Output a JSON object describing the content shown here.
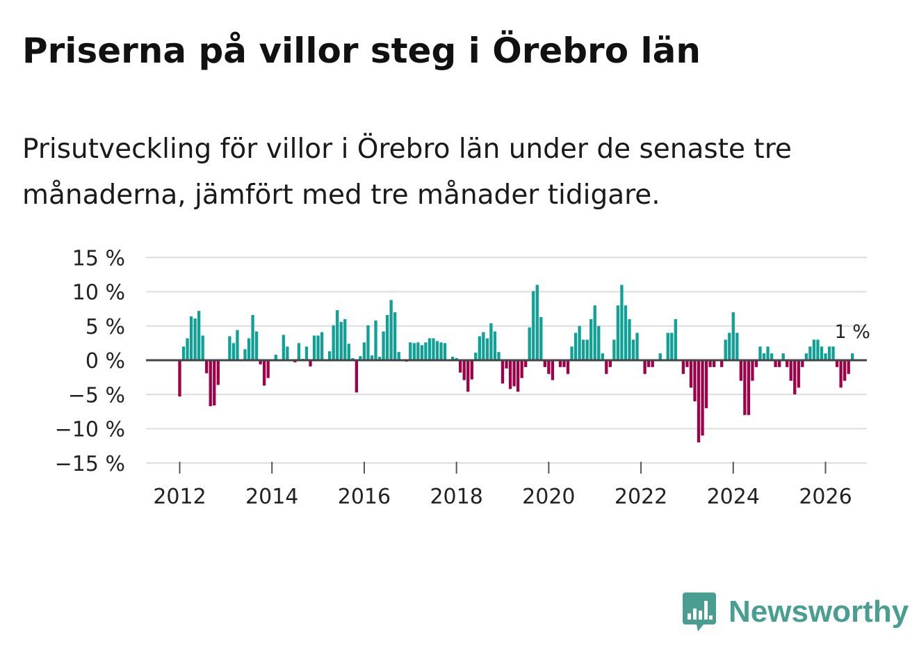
{
  "title": "Priserna på villor steg i Örebro län",
  "subtitle": "Prisutveckling för villor i Örebro län under de senaste tre månaderna, jämfört med tre månader tidigare.",
  "brand": {
    "name": "Newsworthy",
    "icon": "bar-chart-speech-bubble-icon",
    "color": "#4a9e91"
  },
  "chart_data": {
    "type": "bar",
    "title": "Priserna på villor steg i Örebro län",
    "xlabel": "",
    "ylabel": "",
    "ylim": [
      -15,
      15
    ],
    "yticks": [
      15,
      10,
      5,
      0,
      -5,
      -10,
      -15
    ],
    "ytick_labels": [
      "15 %",
      "10 %",
      "5 %",
      "0 %",
      "−5 %",
      "−10 %",
      "−15 %"
    ],
    "xticks": [
      2012,
      2014,
      2016,
      2018,
      2020,
      2022,
      2024,
      2026
    ],
    "xtick_labels": [
      "2012",
      "2014",
      "2016",
      "2018",
      "2020",
      "2022",
      "2024",
      "2026"
    ],
    "x_start": 2012.0,
    "x_step": 0.0833333,
    "positive_color": "#0fa196",
    "negative_color": "#a00047",
    "last_value_label": "1 %",
    "grid": true,
    "values": [
      -5.3,
      2.0,
      3.2,
      6.4,
      6.1,
      7.2,
      3.6,
      -1.9,
      -6.7,
      -6.6,
      -3.6,
      0,
      0,
      3.5,
      2.5,
      4.4,
      0,
      1.6,
      3.2,
      6.6,
      4.2,
      -0.6,
      -3.7,
      -2.6,
      0,
      0.8,
      0,
      3.7,
      2.0,
      0,
      -0.3,
      2.5,
      0.2,
      2.0,
      -0.9,
      3.6,
      3.6,
      4.1,
      0,
      1.3,
      5.1,
      7.3,
      5.6,
      6.0,
      2.4,
      0.3,
      -4.7,
      0.6,
      2.6,
      5.1,
      0.7,
      5.8,
      0.5,
      4.2,
      6.6,
      8.8,
      7.0,
      1.2,
      0,
      -0.2,
      2.6,
      2.5,
      2.6,
      2.2,
      2.6,
      3.2,
      3.2,
      2.8,
      2.6,
      2.5,
      0,
      0.5,
      0.3,
      -1.8,
      -2.9,
      -4.6,
      -2.8,
      1.1,
      3.5,
      4.1,
      3.2,
      5.4,
      4.2,
      1.2,
      -3.4,
      -1.2,
      -4.2,
      -3.8,
      -4.6,
      -2.6,
      -1.0,
      4.8,
      10.1,
      11.0,
      6.3,
      -1.0,
      -2.0,
      -2.9,
      0,
      -1.0,
      -1.0,
      -2.0,
      2.0,
      4.0,
      5.0,
      3.0,
      3.0,
      6.0,
      8.0,
      5.0,
      1.0,
      -2.0,
      -1.0,
      3.0,
      8.0,
      11.0,
      8.0,
      6.0,
      3.0,
      4.0,
      0,
      -2.0,
      -1.0,
      -1.0,
      0,
      1.0,
      0,
      4.0,
      4.0,
      6.0,
      0,
      -2.0,
      -1.0,
      -4.0,
      -6.0,
      -12.0,
      -11.0,
      -7.0,
      -1.0,
      -1.0,
      0,
      -1.0,
      3.0,
      4.0,
      7.0,
      4.0,
      -3.0,
      -8.0,
      -8.0,
      -3.0,
      -1.0,
      2.0,
      1.0,
      2.0,
      1.0,
      -1.0,
      -1.0,
      1.0,
      -1.0,
      -3.0,
      -5.0,
      -4.0,
      -1.0,
      1.0,
      2.0,
      3.0,
      3.0,
      2.0,
      1.0,
      2.0,
      2.0,
      -1.0,
      -4.0,
      -3.0,
      -2.0,
      1.0
    ]
  }
}
